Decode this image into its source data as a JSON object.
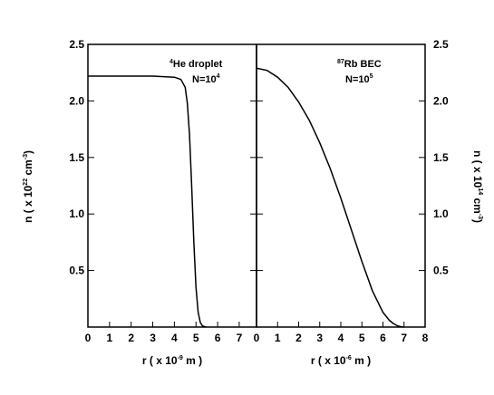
{
  "chart_data": [
    {
      "type": "line",
      "panel": "left",
      "annotation": {
        "sup": "4",
        "line1": "He droplet",
        "line2_base": "N=10",
        "line2_sup": "4"
      },
      "xlabel": {
        "pre": "r ( x 10",
        "sup": "-9",
        "post": " m )"
      },
      "ylabel": {
        "pre": "n ( x 10",
        "sup1": "22",
        "mid": " cm",
        "sup2": "-3",
        "post": ")"
      },
      "xlim": [
        0,
        7.8
      ],
      "ylim": [
        0,
        2.5
      ],
      "xticks": [
        "0",
        "1",
        "2",
        "3",
        "4",
        "5",
        "6",
        "7"
      ],
      "yticks": [
        "0.5",
        "1.0",
        "1.5",
        "2.0",
        "2.5"
      ],
      "series": [
        {
          "x": [
            0,
            1,
            2,
            3,
            4,
            4.3,
            4.5,
            4.6,
            4.7,
            4.8,
            4.9,
            5.0,
            5.1,
            5.2,
            5.3,
            5.45
          ],
          "y": [
            2.22,
            2.22,
            2.22,
            2.22,
            2.21,
            2.19,
            2.12,
            1.98,
            1.7,
            1.25,
            0.75,
            0.35,
            0.13,
            0.04,
            0.01,
            0
          ]
        }
      ]
    },
    {
      "type": "line",
      "panel": "right",
      "annotation": {
        "sup": "87",
        "line1": "Rb BEC",
        "line2_base": "N=10",
        "line2_sup": "5"
      },
      "xlabel": {
        "pre": "r ( x 10",
        "sup": "-6",
        "post": " m )"
      },
      "ylabel": {
        "pre": "n ( x 10",
        "sup1": "14",
        "mid": " cm",
        "sup2": "-3",
        "post": ")"
      },
      "xlim": [
        0,
        8
      ],
      "ylim": [
        0,
        2.5
      ],
      "xticks": [
        "0",
        "1",
        "2",
        "3",
        "4",
        "5",
        "6",
        "7",
        "8"
      ],
      "yticks": [
        "0.5",
        "1.0",
        "1.5",
        "2.0",
        "2.5"
      ],
      "series": [
        {
          "x": [
            0,
            0.5,
            1,
            1.5,
            2,
            2.5,
            3,
            3.5,
            4,
            4.5,
            5,
            5.5,
            6,
            6.3,
            6.5,
            6.7,
            6.85,
            7.0
          ],
          "y": [
            2.29,
            2.27,
            2.21,
            2.12,
            1.99,
            1.83,
            1.63,
            1.4,
            1.14,
            0.86,
            0.58,
            0.32,
            0.13,
            0.06,
            0.03,
            0.01,
            0.003,
            0
          ]
        }
      ]
    }
  ]
}
